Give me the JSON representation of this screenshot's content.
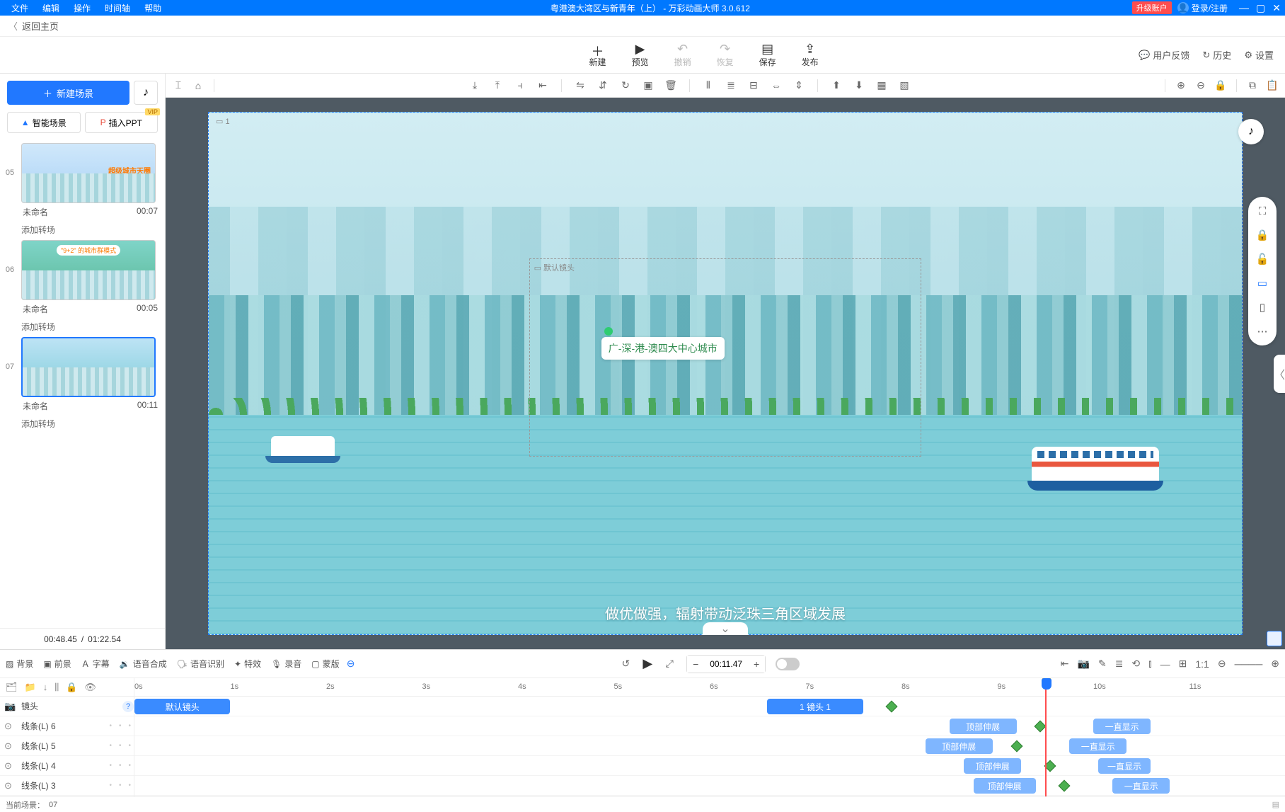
{
  "colors": {
    "primary": "#2178ff",
    "titlebar": "#0078ff",
    "danger": "#ff4d4f",
    "green": "#2e8b4e"
  },
  "titlebar": {
    "menus": [
      "文件",
      "编辑",
      "操作",
      "时间轴",
      "帮助"
    ],
    "doc_title": "粤港澳大湾区与新青年（上）",
    "app_name": "万彩动画大师 3.0.612",
    "upgrade": "升级账户",
    "login": "登录/注册"
  },
  "back": {
    "label": "返回主页"
  },
  "toolbar": {
    "actions": [
      {
        "icon": "＋",
        "label": "新建",
        "enabled": true
      },
      {
        "icon": "▶",
        "label": "预览",
        "enabled": true
      },
      {
        "icon": "↶",
        "label": "撤销",
        "enabled": false
      },
      {
        "icon": "↷",
        "label": "恢复",
        "enabled": false
      },
      {
        "icon": "▤",
        "label": "保存",
        "enabled": true
      },
      {
        "icon": "⇪",
        "label": "发布",
        "enabled": true
      }
    ],
    "right": [
      {
        "icon": "💬",
        "label": "用户反馈"
      },
      {
        "icon": "↻",
        "label": "历史"
      },
      {
        "icon": "⚙",
        "label": "设置"
      }
    ]
  },
  "sidebar": {
    "new_scene": "新建场景",
    "smart_scene": "智能场景",
    "insert_ppt": "插入PPT",
    "vip": "VIP",
    "add_transition": "添加转场",
    "scenes": [
      {
        "num": "05",
        "name": "未命名",
        "dur": "00:07",
        "variant": "map",
        "map_label": "超级城市天圈",
        "selected": false
      },
      {
        "num": "06",
        "name": "未命名",
        "dur": "00:05",
        "variant": "green",
        "tag": "\"9+2\" 的城市群模式",
        "selected": false
      },
      {
        "num": "07",
        "name": "未命名",
        "dur": "00:11",
        "variant": "city",
        "selected": true
      }
    ],
    "time": {
      "current": "00:48.45",
      "total": "01:22.54"
    }
  },
  "canvas": {
    "frame_index": "1",
    "camera_label": "默认镜头",
    "callout_text": "广-深-港-澳四大中心城市",
    "subtitle": "做优做强，辐射带动泛珠三角区域发展",
    "float_tools": [
      "⛶",
      "🔒",
      "🔓",
      "▭",
      "▯",
      "⋯"
    ]
  },
  "timeline": {
    "tabs": [
      {
        "icon": "▨",
        "label": "背景"
      },
      {
        "icon": "▣",
        "label": "前景"
      },
      {
        "icon": "Ａ",
        "label": "字幕"
      },
      {
        "icon": "🔉",
        "label": "语音合成"
      },
      {
        "icon": "🗣",
        "label": "语音识别"
      },
      {
        "icon": "✦",
        "label": "特效"
      },
      {
        "icon": "🎙",
        "label": "录音"
      },
      {
        "icon": "▢",
        "label": "蒙版"
      }
    ],
    "current_time": "00:11.47",
    "right_icons": [
      "⇤",
      "📷",
      "✎",
      "≣",
      "⟲",
      "⫾",
      "—",
      "⊞",
      "1:1",
      "⊖",
      "────",
      "⊕"
    ],
    "ruler_seconds": 12,
    "playhead_sec": 9.5,
    "left_head_icons": [
      "🗂",
      "📁",
      "↓",
      "⫼",
      "🔒",
      "👁"
    ],
    "tracks": [
      {
        "icon": "📷",
        "label": "镜头",
        "help": true,
        "clips": [
          {
            "text": "默认镜头",
            "start": 0,
            "end": 1.0,
            "cls": "blue"
          },
          {
            "text": "1 镜头 1",
            "start": 6.6,
            "end": 7.6,
            "cls": "blue"
          }
        ],
        "diamonds": [
          7.9
        ]
      },
      {
        "icon": "⊙",
        "label": "线条(L) 6",
        "clips": [
          {
            "text": "顶部伸展",
            "start": 8.5,
            "end": 9.2,
            "cls": "light"
          },
          {
            "text": "一直显示",
            "start": 10.0,
            "end": 10.6,
            "cls": "light"
          }
        ],
        "diamonds": [
          9.45
        ]
      },
      {
        "icon": "⊙",
        "label": "线条(L) 5",
        "clips": [
          {
            "text": "顶部伸展",
            "start": 8.25,
            "end": 8.95,
            "cls": "light"
          },
          {
            "text": "一直显示",
            "start": 9.75,
            "end": 10.35,
            "cls": "light"
          }
        ],
        "diamonds": [
          9.2
        ]
      },
      {
        "icon": "⊙",
        "label": "线条(L) 4",
        "clips": [
          {
            "text": "顶部伸展",
            "start": 8.65,
            "end": 9.25,
            "cls": "light"
          },
          {
            "text": "一直显示",
            "start": 10.05,
            "end": 10.6,
            "cls": "light"
          }
        ],
        "diamonds": [
          9.55
        ]
      },
      {
        "icon": "⊙",
        "label": "线条(L) 3",
        "clips": [
          {
            "text": "顶部伸展",
            "start": 8.75,
            "end": 9.4,
            "cls": "light"
          },
          {
            "text": "一直显示",
            "start": 10.2,
            "end": 10.8,
            "cls": "light"
          }
        ],
        "diamonds": [
          9.7
        ]
      }
    ],
    "footer": {
      "label": "当前场景：",
      "value": "07"
    }
  }
}
